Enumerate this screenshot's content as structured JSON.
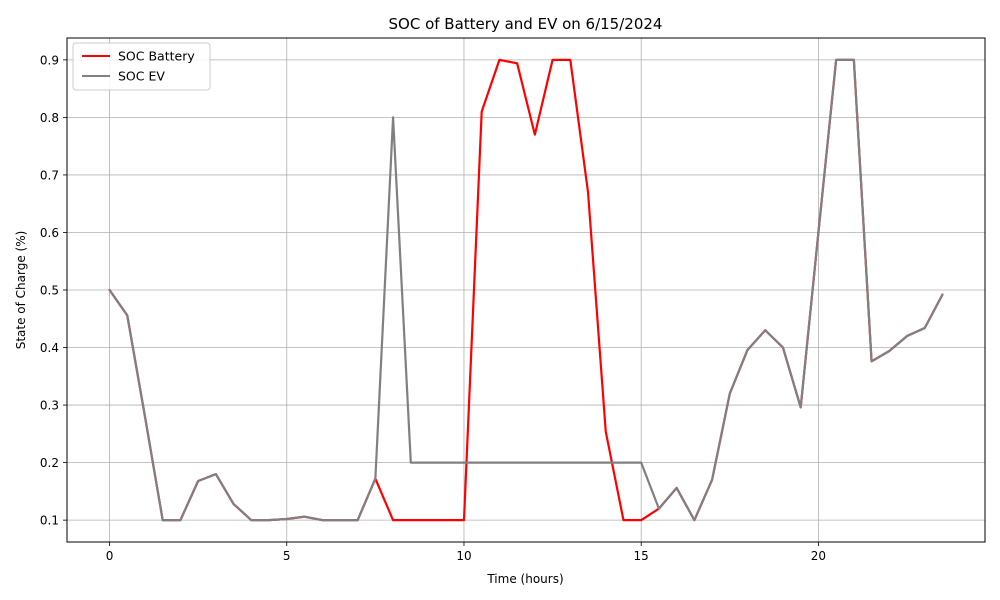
{
  "chart_data": {
    "type": "line",
    "title": "SOC of Battery and EV on 6/15/2024",
    "xlabel": "Time (hours)",
    "ylabel": "State of Charge (%)",
    "xlim": [
      -1.2,
      24.7
    ],
    "ylim": [
      0.062,
      0.938
    ],
    "xticks": [
      0,
      5,
      10,
      15,
      20
    ],
    "yticks": [
      0.1,
      0.2,
      0.3,
      0.4,
      0.5,
      0.6,
      0.7,
      0.8,
      0.9
    ],
    "grid": true,
    "legend_position": "top-left",
    "x": [
      0,
      0.5,
      1,
      1.5,
      2,
      2.5,
      3,
      3.5,
      4,
      4.5,
      5,
      5.5,
      6,
      6.5,
      7,
      7.5,
      8,
      8.5,
      9,
      9.5,
      10,
      10.5,
      11,
      11.5,
      12,
      12.5,
      13,
      13.5,
      14,
      14.5,
      15,
      15.5,
      16,
      16.5,
      17,
      17.5,
      18,
      18.5,
      19,
      19.5,
      20,
      20.5,
      21,
      21.5,
      22,
      22.5,
      23,
      23.5
    ],
    "series": [
      {
        "name": "SOC Battery",
        "color": "#ff0000",
        "values": [
          0.5,
          0.456,
          0.28,
          0.1,
          0.1,
          0.168,
          0.18,
          0.128,
          0.1,
          0.1,
          0.102,
          0.106,
          0.1,
          0.1,
          0.1,
          0.172,
          0.1,
          0.1,
          0.1,
          0.1,
          0.1,
          0.81,
          0.9,
          0.894,
          0.77,
          0.9,
          0.9,
          0.67,
          0.254,
          0.1,
          0.1,
          0.12,
          0.156,
          0.1,
          0.17,
          0.32,
          0.396,
          0.43,
          0.4,
          0.296,
          0.6,
          0.9,
          0.9,
          0.376,
          0.394,
          0.42,
          0.434,
          0.492
        ]
      },
      {
        "name": "SOC EV",
        "color": "#808080",
        "values": [
          0.5,
          0.456,
          0.28,
          0.1,
          0.1,
          0.168,
          0.18,
          0.128,
          0.1,
          0.1,
          0.102,
          0.106,
          0.1,
          0.1,
          0.1,
          0.172,
          0.8,
          0.2,
          0.2,
          0.2,
          0.2,
          0.2,
          0.2,
          0.2,
          0.2,
          0.2,
          0.2,
          0.2,
          0.2,
          0.2,
          0.2,
          0.12,
          0.156,
          0.1,
          0.17,
          0.32,
          0.396,
          0.43,
          0.4,
          0.296,
          0.6,
          0.9,
          0.9,
          0.376,
          0.394,
          0.42,
          0.434,
          0.492
        ]
      }
    ]
  }
}
